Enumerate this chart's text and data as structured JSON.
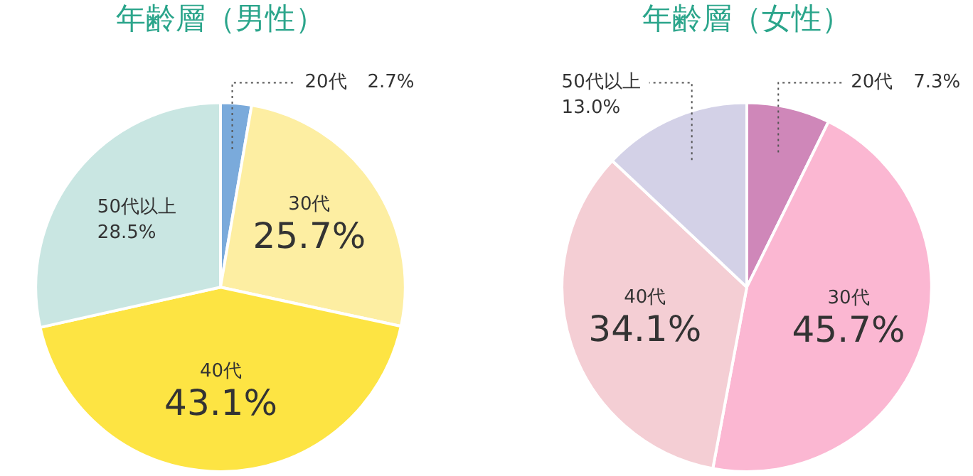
{
  "chart_data": [
    {
      "type": "pie",
      "title": "年齢層（男性）",
      "categories": [
        "20代",
        "30代",
        "40代",
        "50代以上"
      ],
      "values": [
        2.7,
        25.7,
        43.1,
        28.5
      ],
      "colors": [
        "#7aaadb",
        "#fdeea2",
        "#fde443",
        "#c9e6e2"
      ],
      "value_labels": [
        "2.7%",
        "25.7%",
        "43.1%",
        "28.5%"
      ]
    },
    {
      "type": "pie",
      "title": "年齢層（女性）",
      "categories": [
        "20代",
        "30代",
        "40代",
        "50代以上"
      ],
      "values": [
        7.3,
        45.7,
        34.1,
        13.0
      ],
      "colors": [
        "#cf87b9",
        "#fbb7d2",
        "#f4ced4",
        "#d3d1e7"
      ],
      "value_labels": [
        "7.3%",
        "45.7%",
        "34.1%",
        "13.0%"
      ]
    }
  ]
}
